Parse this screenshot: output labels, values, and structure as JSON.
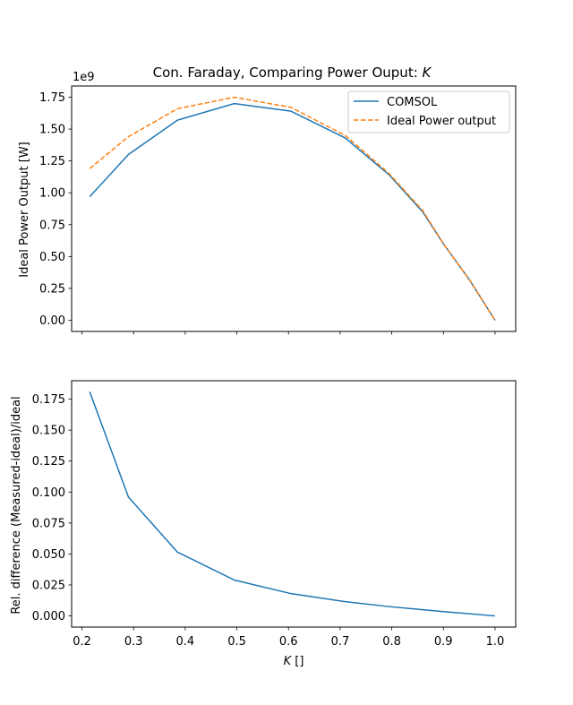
{
  "chart_data": [
    {
      "type": "line",
      "title": "Con. Faraday, Comparing Power Ouput: ",
      "title_var": "K",
      "ylabel": "Ideal Power Output [W]",
      "offset_text": "1e9",
      "xlim": [
        0.18,
        1.04
      ],
      "ylim": [
        -0.088,
        1.838
      ],
      "xticks": [
        0.2,
        0.3,
        0.4,
        0.5,
        0.6,
        0.7,
        0.8,
        0.9,
        1.0
      ],
      "yticks": [
        0.0,
        0.25,
        0.5,
        0.75,
        1.0,
        1.25,
        1.5,
        1.75
      ],
      "ytick_labels": [
        "0.00",
        "0.25",
        "0.50",
        "0.75",
        "1.00",
        "1.25",
        "1.50",
        "1.75"
      ],
      "x_tick_labels_visible": false,
      "grid": false,
      "legend": "top-right",
      "series": [
        {
          "name": "COMSOL",
          "color": "#1f77b4",
          "dash": "solid",
          "x": [
            0.215,
            0.29,
            0.385,
            0.495,
            0.605,
            0.71,
            0.795,
            0.86,
            0.9,
            0.95,
            1.0
          ],
          "y": [
            0.97,
            1.3,
            1.57,
            1.7,
            1.64,
            1.43,
            1.14,
            0.85,
            0.6,
            0.32,
            0.0
          ]
        },
        {
          "name": "Ideal Power output",
          "color": "#ff7f0e",
          "dash": "dashed",
          "x": [
            0.215,
            0.29,
            0.385,
            0.495,
            0.605,
            0.71,
            0.795,
            0.86,
            0.9,
            0.95,
            1.0
          ],
          "y": [
            1.19,
            1.44,
            1.66,
            1.75,
            1.67,
            1.45,
            1.15,
            0.86,
            0.6,
            0.32,
            0.0
          ]
        }
      ]
    },
    {
      "type": "line",
      "ylabel": "Rel. difference (Measured-ideal)/ideal",
      "xlabel_var": "K",
      "xlabel_suffix": " []",
      "xlim": [
        0.18,
        1.04
      ],
      "ylim": [
        -0.009,
        0.1899
      ],
      "xticks": [
        0.2,
        0.3,
        0.4,
        0.5,
        0.6,
        0.7,
        0.8,
        0.9,
        1.0
      ],
      "xtick_labels": [
        "0.2",
        "0.3",
        "0.4",
        "0.5",
        "0.6",
        "0.7",
        "0.8",
        "0.9",
        "1.0"
      ],
      "yticks": [
        0.0,
        0.025,
        0.05,
        0.075,
        0.1,
        0.125,
        0.15,
        0.175
      ],
      "ytick_labels": [
        "0.000",
        "0.025",
        "0.050",
        "0.075",
        "0.100",
        "0.125",
        "0.150",
        "0.175"
      ],
      "grid": false,
      "series": [
        {
          "color": "#1f77b4",
          "dash": "solid",
          "x": [
            0.215,
            0.29,
            0.385,
            0.495,
            0.605,
            0.71,
            0.795,
            0.86,
            0.9,
            0.95,
            1.0
          ],
          "y": [
            0.181,
            0.096,
            0.0515,
            0.029,
            0.018,
            0.0115,
            0.0075,
            0.005,
            0.0035,
            0.0018,
            0.0
          ]
        }
      ]
    }
  ]
}
